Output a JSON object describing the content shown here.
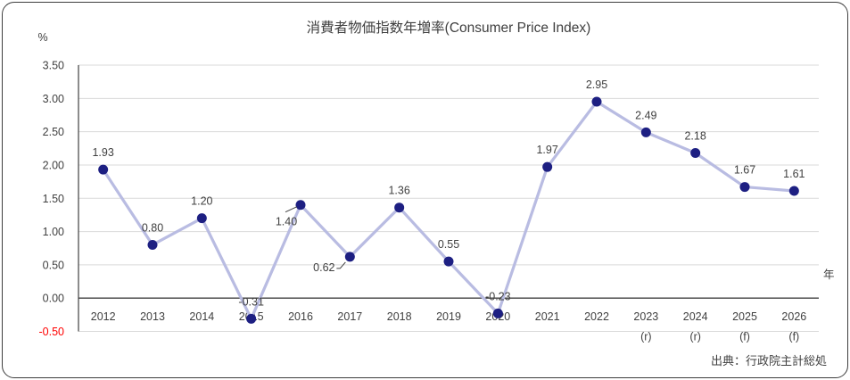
{
  "source_caption": "出典：行政院主計総処",
  "chart_data": {
    "type": "line",
    "title": "消費者物価指数年増率(Consumer Price Index)",
    "unit_label": "%",
    "x_axis_title": "年",
    "categories": [
      "2012",
      "2013",
      "2014",
      "2015",
      "2016",
      "2017",
      "2018",
      "2019",
      "2020",
      "2021",
      "2022",
      "2023",
      "2024",
      "2025",
      "2026"
    ],
    "category_sublabels": [
      "",
      "",
      "",
      "",
      "",
      "",
      "",
      "",
      "",
      "",
      "",
      "(r)",
      "(r)",
      "(f)",
      "(f)"
    ],
    "values": [
      1.93,
      0.8,
      1.2,
      -0.31,
      1.4,
      0.62,
      1.36,
      0.55,
      -0.23,
      1.97,
      2.95,
      2.49,
      2.18,
      1.67,
      1.61
    ],
    "labels": [
      "1.93",
      "0.80",
      "1.20",
      "-0.31",
      "1.40",
      "0.62",
      "1.36",
      "0.55",
      "-0.23",
      "1.97",
      "2.95",
      "2.49",
      "2.18",
      "1.67",
      "1.61"
    ],
    "y_ticks": [
      "3.50",
      "3.00",
      "2.50",
      "2.00",
      "1.50",
      "1.00",
      "0.50",
      "0.00",
      "-0.50"
    ],
    "ylim": [
      -0.5,
      3.5
    ],
    "grid": true,
    "legend": "none",
    "colors": {
      "line": "#b9bce2",
      "marker": "#1d1f82",
      "text": "#404040",
      "gridline": "#d9d9d9",
      "axis": "#404040",
      "negative_tick": "#ff0000"
    },
    "label_overrides": {
      "4": {
        "dx": -16,
        "dy": 23,
        "leader": [
          [
            -17,
            8
          ],
          [
            -4,
            2
          ]
        ]
      },
      "5": {
        "dx": -29,
        "dy": 16,
        "leader": [
          [
            -15,
            13
          ],
          [
            -11,
            13
          ],
          [
            -5,
            6
          ]
        ]
      }
    }
  }
}
